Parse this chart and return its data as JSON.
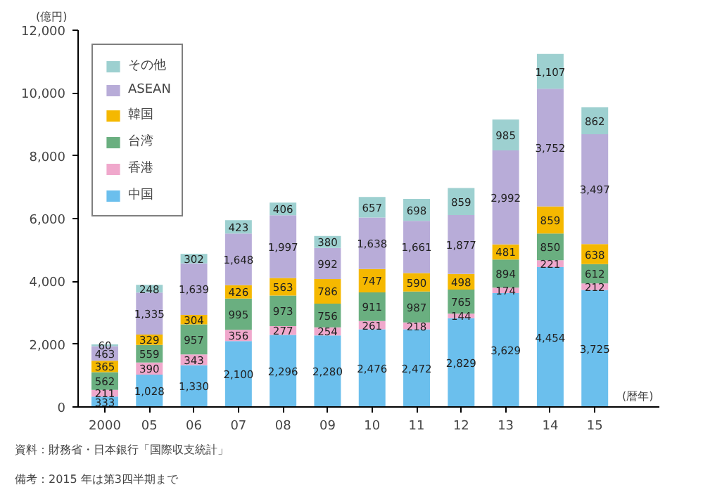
{
  "chart_data": {
    "type": "bar",
    "stacked": true,
    "ylabel": "(億円)",
    "xlabel": "(暦年)",
    "categories": [
      "2000",
      "05",
      "06",
      "07",
      "08",
      "09",
      "10",
      "11",
      "12",
      "13",
      "14",
      "15"
    ],
    "series": [
      {
        "name": "中国",
        "color": "#6bbfed",
        "values": [
          333,
          1028,
          1330,
          2100,
          2296,
          2280,
          2476,
          2472,
          2829,
          3629,
          4454,
          3725
        ],
        "value_labels": [
          "333",
          "1,028",
          "1,330",
          "2,100",
          "2,296",
          "2,280",
          "2,476",
          "2,472",
          "2,829",
          "3,629",
          "4,454",
          "3,725"
        ]
      },
      {
        "name": "香港",
        "color": "#f0a8cc",
        "values": [
          211,
          390,
          343,
          356,
          277,
          254,
          261,
          218,
          144,
          174,
          221,
          212
        ],
        "value_labels": [
          "211",
          "390",
          "343",
          "356",
          "277",
          "254",
          "261",
          "218",
          "144",
          "174",
          "221",
          "212"
        ]
      },
      {
        "name": "台湾",
        "color": "#6aaf80",
        "values": [
          562,
          559,
          957,
          995,
          973,
          756,
          911,
          987,
          765,
          894,
          850,
          612
        ],
        "value_labels": [
          "562",
          "559",
          "957",
          "995",
          "973",
          "756",
          "911",
          "987",
          "765",
          "894",
          "850",
          "612"
        ]
      },
      {
        "name": "韓国",
        "color": "#f5b800",
        "values": [
          365,
          329,
          304,
          426,
          563,
          786,
          747,
          590,
          498,
          481,
          859,
          638
        ],
        "value_labels": [
          "365",
          "329",
          "304",
          "426",
          "563",
          "786",
          "747",
          "590",
          "498",
          "481",
          "859",
          "638"
        ]
      },
      {
        "name": "ASEAN",
        "color": "#b8acd8",
        "values": [
          463,
          1335,
          1639,
          1648,
          1997,
          992,
          1638,
          1661,
          1877,
          2992,
          3752,
          3497
        ],
        "value_labels": [
          "463",
          "1,335",
          "1,639",
          "1,648",
          "1,997",
          "992",
          "1,638",
          "1,661",
          "1,877",
          "2,992",
          "3,752",
          "3,497"
        ]
      },
      {
        "name": "その他",
        "color": "#9dd0d0",
        "values": [
          60,
          248,
          302,
          423,
          406,
          380,
          657,
          698,
          859,
          985,
          1107,
          862
        ],
        "value_labels": [
          "60",
          "248",
          "302",
          "423",
          "406",
          "380",
          "657",
          "698",
          "859",
          "985",
          "1,107",
          "862"
        ]
      }
    ],
    "ylim": [
      0,
      12000
    ],
    "yticks": [
      0,
      {
        "value": 2000,
        "label": "2,000"
      },
      {
        "value": 4000,
        "label": "4,000"
      },
      {
        "value": 6000,
        "label": "6,000"
      },
      {
        "value": 8000,
        "label": "8,000"
      },
      {
        "value": 10000,
        "label": "10,000"
      },
      {
        "value": 12000,
        "label": "12,000"
      }
    ],
    "grid": false,
    "legend": "top left",
    "annotations": [
      "備考：2015 年は第3四半期まで",
      "資料：財務省・日本銀行「国際収支統計」"
    ]
  }
}
